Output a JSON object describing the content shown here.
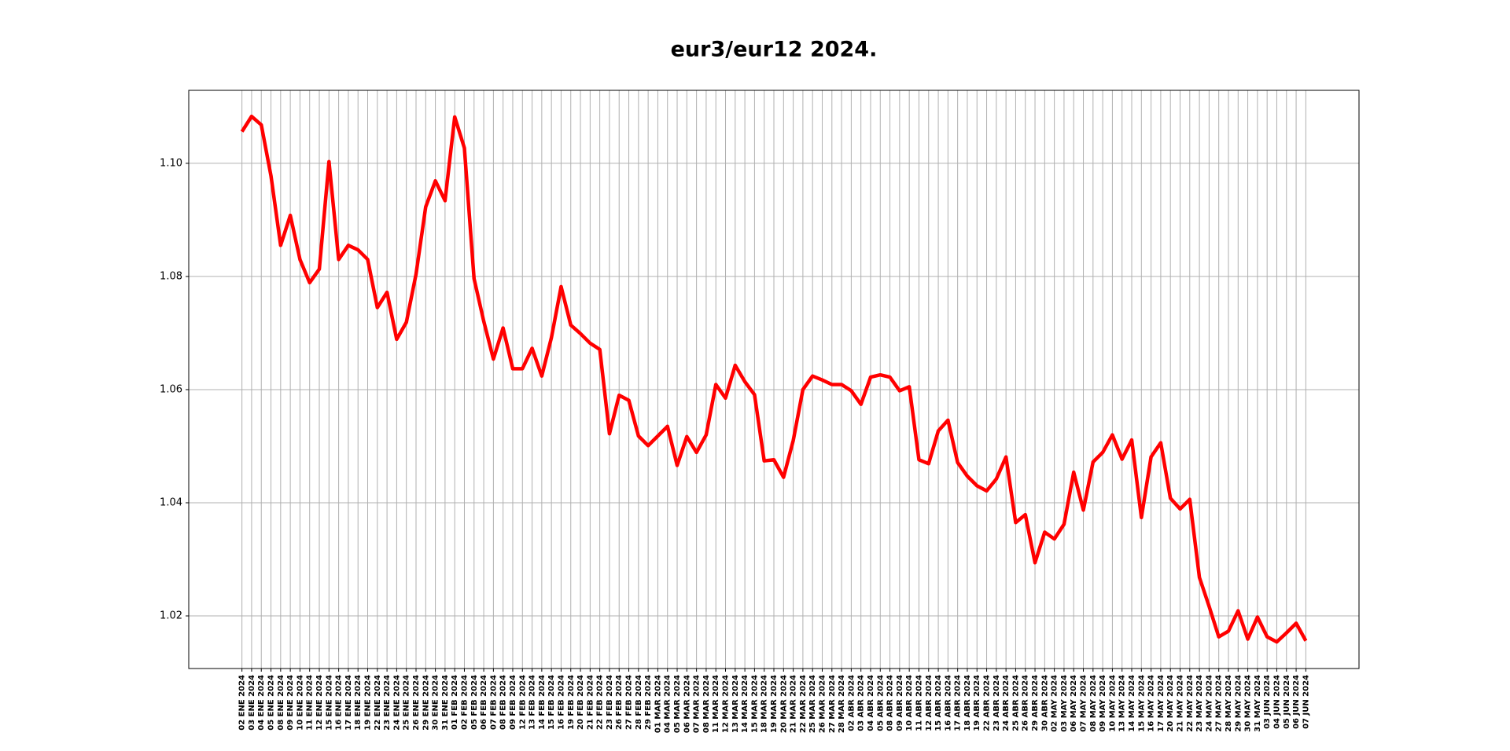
{
  "chart_data": {
    "type": "line",
    "title": "eur3/eur12 2024.",
    "categories": [
      "02 ENE 2024",
      "03 ENE 2024",
      "04 ENE 2024",
      "05 ENE 2024",
      "08 ENE 2024",
      "09 ENE 2024",
      "10 ENE 2024",
      "11 ENE 2024",
      "12 ENE 2024",
      "15 ENE 2024",
      "16 ENE 2024",
      "17 ENE 2024",
      "18 ENE 2024",
      "19 ENE 2024",
      "22 ENE 2024",
      "23 ENE 2024",
      "24 ENE 2024",
      "25 ENE 2024",
      "26 ENE 2024",
      "29 ENE 2024",
      "30 ENE 2024",
      "31 ENE 2024",
      "01 FEB 2024",
      "02 FEB 2024",
      "05 FEB 2024",
      "06 FEB 2024",
      "07 FEB 2024",
      "08 FEB 2024",
      "09 FEB 2024",
      "12 FEB 2024",
      "13 FEB 2024",
      "14 FEB 2024",
      "15 FEB 2024",
      "16 FEB 2024",
      "19 FEB 2024",
      "20 FEB 2024",
      "21 FEB 2024",
      "22 FEB 2024",
      "23 FEB 2024",
      "26 FEB 2024",
      "27 FEB 2024",
      "28 FEB 2024",
      "29 FEB 2024",
      "01 MAR 2024",
      "04 MAR 2024",
      "05 MAR 2024",
      "06 MAR 2024",
      "07 MAR 2024",
      "08 MAR 2024",
      "11 MAR 2024",
      "12 MAR 2024",
      "13 MAR 2024",
      "14 MAR 2024",
      "15 MAR 2024",
      "18 MAR 2024",
      "19 MAR 2024",
      "20 MAR 2024",
      "21 MAR 2024",
      "22 MAR 2024",
      "25 MAR 2024",
      "26 MAR 2024",
      "27 MAR 2024",
      "28 MAR 2024",
      "02 ABR 2024",
      "03 ABR 2024",
      "04 ABR 2024",
      "05 ABR 2024",
      "08 ABR 2024",
      "09 ABR 2024",
      "10 ABR 2024",
      "11 ABR 2024",
      "12 ABR 2024",
      "15 ABR 2024",
      "16 ABR 2024",
      "17 ABR 2024",
      "18 ABR 2024",
      "19 ABR 2024",
      "22 ABR 2024",
      "23 ABR 2024",
      "24 ABR 2024",
      "25 ABR 2024",
      "26 ABR 2024",
      "29 ABR 2024",
      "30 ABR 2024",
      "02 MAY 2024",
      "03 MAY 2024",
      "06 MAY 2024",
      "07 MAY 2024",
      "08 MAY 2024",
      "09 MAY 2024",
      "10 MAY 2024",
      "13 MAY 2024",
      "14 MAY 2024",
      "15 MAY 2024",
      "16 MAY 2024",
      "17 MAY 2024",
      "20 MAY 2024",
      "21 MAY 2024",
      "22 MAY 2024",
      "23 MAY 2024",
      "24 MAY 2024",
      "27 MAY 2024",
      "28 MAY 2024",
      "29 MAY 2024",
      "30 MAY 2024",
      "31 MAY 2024",
      "03 JUN 2024",
      "04 JUN 2024",
      "05 JUN 2024",
      "06 JUN 2024",
      "07 JUN 2024"
    ],
    "series": [
      {
        "color": "#ff0000",
        "values": [
          1.1056,
          1.1083,
          1.1068,
          1.0978,
          1.0855,
          1.0908,
          1.083,
          1.0789,
          1.0813,
          1.1003,
          1.083,
          1.0855,
          1.0847,
          1.083,
          1.0745,
          1.0772,
          1.0689,
          1.0719,
          1.0804,
          1.0923,
          1.0969,
          1.0934,
          1.1082,
          1.1027,
          1.0796,
          1.0721,
          1.0654,
          1.0709,
          1.0637,
          1.0637,
          1.0673,
          1.0624,
          1.0692,
          1.0782,
          1.0714,
          1.0699,
          1.0682,
          1.0671,
          1.0522,
          1.059,
          1.0581,
          1.0518,
          1.0501,
          1.0518,
          1.0535,
          1.0466,
          1.0517,
          1.0489,
          1.052,
          1.0609,
          1.0585,
          1.0643,
          1.0614,
          1.0591,
          1.0474,
          1.0476,
          1.0445,
          1.051,
          1.06,
          1.0624,
          1.0617,
          1.0609,
          1.0609,
          1.0598,
          1.0574,
          1.0622,
          1.0626,
          1.0622,
          1.0598,
          1.0605,
          1.0476,
          1.0469,
          1.0527,
          1.0546,
          1.0471,
          1.0447,
          1.043,
          1.0421,
          1.0442,
          1.0481,
          1.0365,
          1.0379,
          1.0294,
          1.0348,
          1.0336,
          1.0362,
          1.0454,
          1.0387,
          1.0472,
          1.0489,
          1.052,
          1.0477,
          1.0511,
          1.0374,
          1.0481,
          1.0506,
          1.0408,
          1.0389,
          1.0406,
          1.0268,
          1.0217,
          1.0163,
          1.0173,
          1.0209,
          1.0159,
          1.0198,
          1.0163,
          1.0154,
          1.017,
          1.0187,
          1.0156
        ]
      }
    ],
    "ylim": [
      1.0107,
      1.1129
    ],
    "yticks": [
      {
        "value": 1.02,
        "label": "1.02"
      },
      {
        "value": 1.04,
        "label": "1.04"
      },
      {
        "value": 1.06,
        "label": "1.06"
      },
      {
        "value": 1.08,
        "label": "1.08"
      },
      {
        "value": 1.1,
        "label": "1.10"
      }
    ],
    "grid": true
  }
}
